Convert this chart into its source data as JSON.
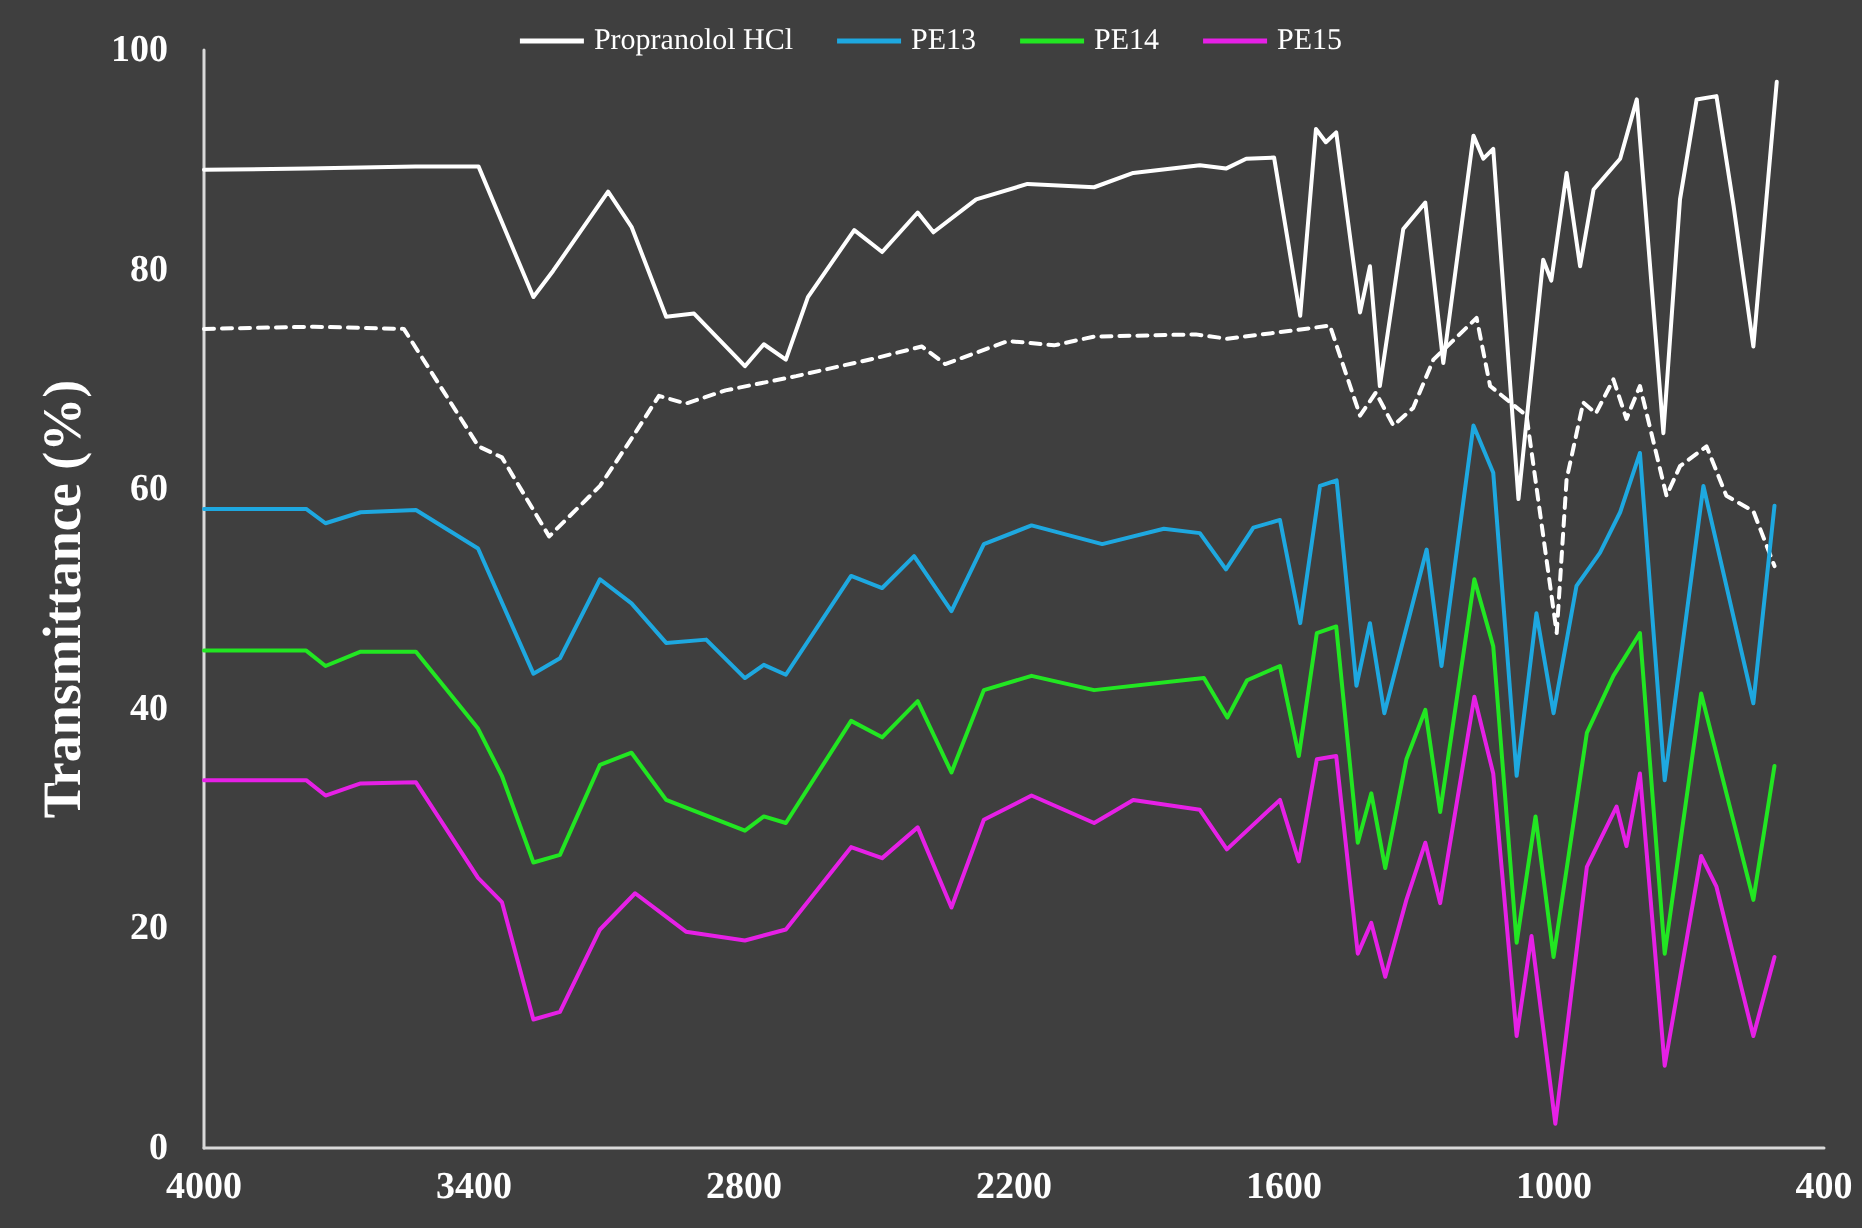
{
  "chart_data": {
    "type": "line",
    "ylabel": "Transmittance (%)",
    "xlim": [
      4000,
      400
    ],
    "xticks": [
      4000,
      3400,
      2800,
      2200,
      1600,
      1000,
      400
    ],
    "ylim": [
      0,
      100
    ],
    "yticks": [
      0,
      20,
      40,
      60,
      80,
      100
    ],
    "grid": false,
    "legend": "top",
    "marker": "none",
    "series": [
      {
        "name": "Propranolol HCl",
        "color": "#ffffff",
        "line_style": "solid",
        "x": [
          4000,
          3770,
          3530,
          3390,
          3268,
          3224,
          3102,
          3050,
          2973,
          2911,
          2798,
          2756,
          2707,
          2658,
          2555,
          2493,
          2414,
          2379,
          2284,
          2170,
          2022,
          1935,
          1787,
          1729,
          1684,
          1622,
          1564,
          1529,
          1507,
          1484,
          1431,
          1409,
          1387,
          1335,
          1286,
          1246,
          1179,
          1157,
          1135,
          1079,
          1024,
          1006,
          972,
          942,
          912,
          853,
          816,
          757,
          720,
          683,
          639,
          601,
          557,
          505
        ],
        "values": [
          89.1,
          89.2,
          89.4,
          89.4,
          77.5,
          79.9,
          87.1,
          83.9,
          75.7,
          76.0,
          71.2,
          73.2,
          71.8,
          77.5,
          83.6,
          81.6,
          85.2,
          83.4,
          86.4,
          87.8,
          87.5,
          88.8,
          89.5,
          89.2,
          90.1,
          90.2,
          75.8,
          92.8,
          91.6,
          92.5,
          76.1,
          80.3,
          69.4,
          83.7,
          86.1,
          71.5,
          92.2,
          90.1,
          91.0,
          59.1,
          80.9,
          79.0,
          88.8,
          80.3,
          87.3,
          90.1,
          95.5,
          65.1,
          86.4,
          95.5,
          95.8,
          85.8,
          73.0,
          97.1
        ]
      },
      {
        "color": "#ffffff",
        "line_style": "dashed",
        "x": [
          4000,
          3756,
          3556,
          3390,
          3338,
          3233,
          3120,
          3050,
          2989,
          2929,
          2841,
          2684,
          2511,
          2405,
          2353,
          2213,
          2111,
          2022,
          1796,
          1726,
          1609,
          1498,
          1431,
          1396,
          1357,
          1313,
          1268,
          1172,
          1142,
          1061,
          994,
          972,
          935,
          907,
          868,
          839,
          809,
          750,
          720,
          661,
          617,
          557,
          510
        ],
        "values": [
          74.6,
          74.8,
          74.6,
          63.9,
          62.9,
          55.7,
          60.3,
          64.6,
          68.5,
          67.8,
          69.0,
          70.3,
          71.9,
          73.0,
          71.4,
          73.5,
          73.1,
          73.9,
          74.1,
          73.7,
          74.3,
          74.9,
          66.7,
          68.8,
          65.8,
          67.4,
          71.8,
          75.6,
          69.4,
          66.7,
          46.9,
          60.9,
          67.9,
          66.9,
          70.0,
          66.4,
          69.4,
          59.4,
          62.1,
          63.9,
          59.4,
          58.0,
          53.0
        ]
      },
      {
        "name": "PE13",
        "color": "#1ea8e0",
        "line_style": "solid",
        "x": [
          4000,
          3773,
          3730,
          3652,
          3529,
          3391,
          3268,
          3209,
          3120,
          3050,
          2973,
          2884,
          2798,
          2756,
          2707,
          2562,
          2493,
          2422,
          2339,
          2267,
          2161,
          2004,
          1867,
          1787,
          1729,
          1668,
          1609,
          1564,
          1520,
          1483,
          1439,
          1409,
          1377,
          1283,
          1250,
          1179,
          1135,
          1083,
          1039,
          1001,
          950,
          898,
          853,
          809,
          754,
          668,
          557,
          510
        ],
        "values": [
          58.2,
          58.2,
          56.9,
          57.9,
          58.1,
          54.6,
          43.2,
          44.6,
          51.8,
          49.6,
          46.0,
          46.3,
          42.8,
          44.0,
          43.1,
          52.1,
          51.0,
          53.9,
          48.9,
          55.0,
          56.7,
          55.0,
          56.4,
          56.0,
          52.7,
          56.5,
          57.2,
          47.8,
          60.3,
          60.8,
          42.1,
          47.8,
          39.6,
          54.5,
          43.9,
          65.8,
          61.5,
          33.9,
          48.7,
          39.6,
          51.2,
          54.2,
          57.9,
          63.3,
          33.5,
          60.3,
          40.5,
          58.5
        ]
      },
      {
        "name": "PE14",
        "color": "#22e622",
        "line_style": "solid",
        "x": [
          4000,
          3773,
          3730,
          3652,
          3529,
          3391,
          3338,
          3268,
          3209,
          3120,
          3050,
          2973,
          2798,
          2756,
          2707,
          2562,
          2493,
          2414,
          2339,
          2267,
          2161,
          2022,
          1778,
          1726,
          1682,
          1609,
          1567,
          1527,
          1484,
          1436,
          1406,
          1375,
          1328,
          1286,
          1253,
          1177,
          1135,
          1083,
          1041,
          1001,
          927,
          868,
          809,
          754,
          673,
          557,
          510
        ],
        "values": [
          45.3,
          45.3,
          43.9,
          45.2,
          45.2,
          38.2,
          33.9,
          26.0,
          26.7,
          34.9,
          36.0,
          31.7,
          28.9,
          30.2,
          29.6,
          38.9,
          37.4,
          40.7,
          34.2,
          41.7,
          43.0,
          41.7,
          42.8,
          39.2,
          42.6,
          43.9,
          35.7,
          46.9,
          47.5,
          27.8,
          32.3,
          25.5,
          35.4,
          39.9,
          30.6,
          51.8,
          45.7,
          18.7,
          30.2,
          17.4,
          37.8,
          43.0,
          46.9,
          17.7,
          41.4,
          22.6,
          34.8
        ]
      },
      {
        "name": "PE15",
        "color": "#e620e6",
        "line_style": "solid",
        "x": [
          4000,
          3773,
          3730,
          3652,
          3529,
          3391,
          3338,
          3268,
          3209,
          3120,
          3042,
          2929,
          2798,
          2707,
          2562,
          2493,
          2414,
          2339,
          2267,
          2161,
          2022,
          1935,
          1787,
          1727,
          1609,
          1567,
          1527,
          1484,
          1436,
          1406,
          1375,
          1328,
          1286,
          1253,
          1177,
          1135,
          1083,
          1050,
          997,
          927,
          861,
          839,
          809,
          754,
          673,
          639,
          557,
          510
        ],
        "values": [
          33.5,
          33.5,
          32.1,
          33.2,
          33.3,
          24.6,
          22.4,
          11.7,
          12.4,
          19.9,
          23.2,
          19.7,
          18.9,
          19.9,
          27.4,
          26.4,
          29.2,
          21.9,
          29.9,
          32.1,
          29.6,
          31.7,
          30.8,
          27.2,
          31.7,
          26.1,
          35.4,
          35.7,
          17.7,
          20.5,
          15.6,
          22.6,
          27.8,
          22.3,
          41.1,
          34.1,
          10.2,
          19.3,
          2.2,
          25.6,
          31.1,
          27.5,
          34.1,
          7.5,
          26.6,
          23.8,
          10.2,
          17.4
        ]
      }
    ]
  }
}
